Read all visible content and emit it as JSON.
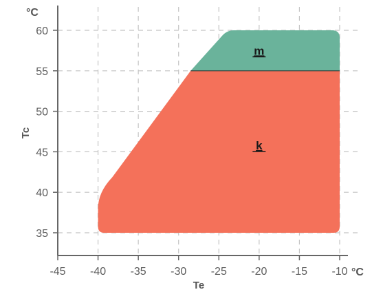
{
  "chart_data": {
    "type": "area",
    "xlabel": "Te",
    "ylabel": "Tc",
    "x_unit": "°C",
    "y_unit": "°C",
    "xlim": [
      -45,
      -10
    ],
    "ylim": [
      33,
      62
    ],
    "x_ticks": [
      -45,
      -40,
      -35,
      -30,
      -25,
      -20,
      -15,
      -10
    ],
    "y_ticks": [
      35,
      40,
      45,
      50,
      55,
      60
    ],
    "grid": true,
    "regions": [
      {
        "name": "m",
        "color": "#6ab39b",
        "polygon": [
          [
            -28.5,
            55
          ],
          [
            -10,
            55
          ],
          [
            -10,
            60
          ],
          [
            -24,
            60
          ]
        ],
        "label_at": [
          -20,
          57.5
        ]
      },
      {
        "name": "k",
        "color": "#f4715a",
        "polygon": [
          [
            -40,
            35
          ],
          [
            -10,
            35
          ],
          [
            -10,
            55
          ],
          [
            -28.5,
            55
          ],
          [
            -38.5,
            41.5
          ],
          [
            -40,
            38
          ]
        ],
        "label_at": [
          -20,
          45.8
        ]
      }
    ],
    "x_tick_labels": [
      "-45",
      "-40",
      "-35",
      "-30",
      "-25",
      "-20",
      "-15",
      "-10"
    ],
    "y_tick_labels": [
      "35",
      "40",
      "45",
      "50",
      "55",
      "60"
    ]
  }
}
